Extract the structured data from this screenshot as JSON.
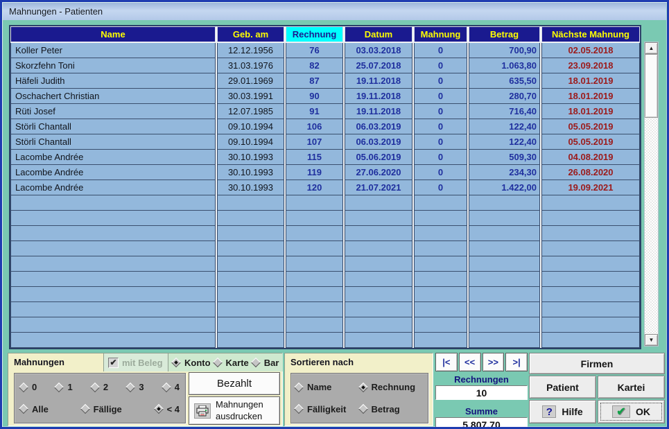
{
  "window": {
    "title": "Mahnungen - Patienten"
  },
  "colors": {
    "teal_bg": "#7ac9b2",
    "window_border": "#1e3cb0",
    "title_grad_top": "#9db7da",
    "title_grad_bottom": "#b3c9e8",
    "header_bg": "#1a1a8f",
    "header_fg": "#ffff00",
    "header_hl_bg": "#00ffff",
    "header_hl_fg": "#1a1a8f",
    "table_cell": "#93b8dc",
    "num_blue": "#1f2f9e",
    "date_red": "#9c1a1a",
    "cream": "#f2f0c9",
    "green_light": "#cfe9cf",
    "gray_panel": "#ababab"
  },
  "icons": {
    "up_arrow": "▲",
    "down_arrow": "▼",
    "check": "✔",
    "question": "?",
    "ok_check": "✔"
  },
  "table": {
    "headers": [
      {
        "label": "Name",
        "highlight": false
      },
      {
        "label": "Geb. am",
        "highlight": false
      },
      {
        "label": "Rechnung",
        "highlight": true
      },
      {
        "label": "Datum",
        "highlight": false
      },
      {
        "label": "Mahnung",
        "highlight": false
      },
      {
        "label": "Betrag",
        "highlight": false
      },
      {
        "label": "Nächste Mahnung",
        "highlight": false
      }
    ],
    "rows": [
      {
        "name": "Koller Peter",
        "geb": "12.12.1956",
        "rechnung": "76",
        "datum": "03.03.2018",
        "mahnung": "0",
        "betrag": "700,90",
        "naechste": "02.05.2018"
      },
      {
        "name": "Skorzfehn Toni",
        "geb": "31.03.1976",
        "rechnung": "82",
        "datum": "25.07.2018",
        "mahnung": "0",
        "betrag": "1.063,80",
        "naechste": "23.09.2018"
      },
      {
        "name": "Häfeli Judith",
        "geb": "29.01.1969",
        "rechnung": "87",
        "datum": "19.11.2018",
        "mahnung": "0",
        "betrag": "635,50",
        "naechste": "18.01.2019"
      },
      {
        "name": "Oschachert Christian",
        "geb": "30.03.1991",
        "rechnung": "90",
        "datum": "19.11.2018",
        "mahnung": "0",
        "betrag": "280,70",
        "naechste": "18.01.2019"
      },
      {
        "name": "Rüti Josef",
        "geb": "12.07.1985",
        "rechnung": "91",
        "datum": "19.11.2018",
        "mahnung": "0",
        "betrag": "716,40",
        "naechste": "18.01.2019"
      },
      {
        "name": "Störli Chantall",
        "geb": "09.10.1994",
        "rechnung": "106",
        "datum": "06.03.2019",
        "mahnung": "0",
        "betrag": "122,40",
        "naechste": "05.05.2019"
      },
      {
        "name": "Störli Chantall",
        "geb": "09.10.1994",
        "rechnung": "107",
        "datum": "06.03.2019",
        "mahnung": "0",
        "betrag": "122,40",
        "naechste": "05.05.2019"
      },
      {
        "name": "Lacombe Andrée",
        "geb": "30.10.1993",
        "rechnung": "115",
        "datum": "05.06.2019",
        "mahnung": "0",
        "betrag": "509,30",
        "naechste": "04.08.2019"
      },
      {
        "name": "Lacombe Andrée",
        "geb": "30.10.1993",
        "rechnung": "119",
        "datum": "27.06.2020",
        "mahnung": "0",
        "betrag": "234,30",
        "naechste": "26.08.2020"
      },
      {
        "name": "Lacombe Andrée",
        "geb": "30.10.1993",
        "rechnung": "120",
        "datum": "21.07.2021",
        "mahnung": "0",
        "betrag": "1.422,00",
        "naechste": "19.09.2021"
      }
    ],
    "empty_rows": 10
  },
  "filters": {
    "title": "Mahnungen",
    "with_receipt_label": "mit Beleg",
    "with_receipt_checked": true,
    "levels": [
      {
        "label": "0",
        "selected": false
      },
      {
        "label": "1",
        "selected": false
      },
      {
        "label": "2",
        "selected": false
      },
      {
        "label": "3",
        "selected": false
      },
      {
        "label": "4",
        "selected": false
      }
    ],
    "scope": [
      {
        "label": "Alle",
        "selected": false
      },
      {
        "label": "Fällige",
        "selected": false
      },
      {
        "label": "< 4",
        "selected": true
      }
    ]
  },
  "payment": {
    "options": [
      {
        "label": "Konto",
        "selected": true
      },
      {
        "label": "Karte",
        "selected": false
      },
      {
        "label": "Bar",
        "selected": false
      }
    ]
  },
  "payment_actions": {
    "paid_label": "Bezahlt",
    "print_label": "Mahnungen ausdrucken"
  },
  "sort": {
    "title": "Sortieren nach",
    "options": [
      {
        "label": "Name",
        "selected": false
      },
      {
        "label": "Rechnung",
        "selected": true
      },
      {
        "label": "Fälligkeit",
        "selected": false
      },
      {
        "label": "Betrag",
        "selected": false
      }
    ]
  },
  "nav": {
    "first": "|<",
    "prev": "<<",
    "next": ">>",
    "last": ">|"
  },
  "summary": {
    "invoices_label": "Rechnungen",
    "invoices_value": "10",
    "sum_label": "Summe",
    "sum_value": "5.807,70"
  },
  "actions": {
    "firmen": "Firmen",
    "patient": "Patient",
    "kartei": "Kartei",
    "hilfe": "Hilfe",
    "ok": "OK"
  }
}
